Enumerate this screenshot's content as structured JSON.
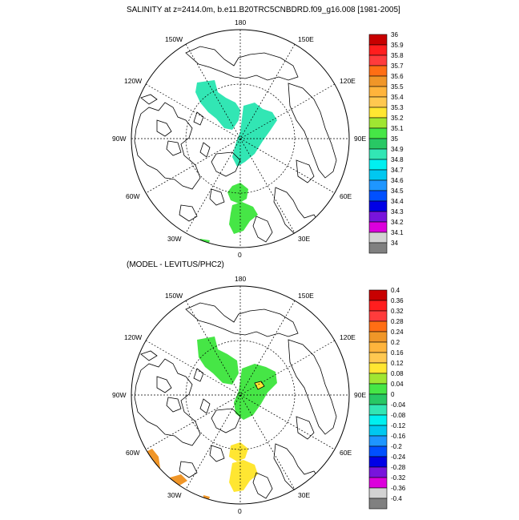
{
  "panel1": {
    "title": "SALINITY at z=2414.0m, b.e11.B20TRC5CNBDRD.f09_g16.008 [1981-2005]",
    "lon_labels": {
      "top": "180",
      "bottom": "0",
      "left": "90W",
      "right": "90E",
      "ul1": "150W",
      "ul2": "120W",
      "ur1": "150E",
      "ur2": "120E",
      "ll1": "60W",
      "ll2": "30W",
      "lr1": "60E",
      "lr2": "30E"
    },
    "colorbar": {
      "labels": [
        "36",
        "35.9",
        "35.8",
        "35.7",
        "35.6",
        "35.5",
        "35.4",
        "35.3",
        "35.2",
        "35.1",
        "35",
        "34.9",
        "34.8",
        "34.7",
        "34.6",
        "34.5",
        "34.4",
        "34.3",
        "34.2",
        "34.1",
        "34"
      ],
      "colors": [
        "#c80000",
        "#ff1e1e",
        "#ff3c3c",
        "#ff6e14",
        "#f09628",
        "#ffb43c",
        "#ffc850",
        "#ffe632",
        "#a0e632",
        "#46e646",
        "#28c864",
        "#32e6b4",
        "#00f0f0",
        "#00c8f0",
        "#1e96ff",
        "#0050ff",
        "#0000e6",
        "#7814dc",
        "#dc00dc",
        "#d2d2d2",
        "#808080"
      ]
    },
    "regions": [
      {
        "name": "region-siberian-side",
        "color": "#32e6b4"
      },
      {
        "name": "region-central-arctic",
        "color": "#32e6b4"
      },
      {
        "name": "region-fram-strait",
        "color": "#46e646"
      },
      {
        "name": "region-nordic-seas",
        "color": "#46e646"
      },
      {
        "name": "region-labrador-edge",
        "color": "#46e646"
      },
      {
        "name": "region-north-atlantic",
        "color": "#46e646"
      }
    ]
  },
  "panel2": {
    "title": "(MODEL - LEVITUS/PHC2)",
    "lon_labels": {
      "top": "180",
      "bottom": "0",
      "left": "90W",
      "right": "90E",
      "ul1": "150W",
      "ul2": "120W",
      "ur1": "150E",
      "ur2": "120E",
      "ll1": "60W",
      "ll2": "30W",
      "lr1": "60E",
      "lr2": "30E"
    },
    "colorbar": {
      "labels": [
        "0.4",
        "0.36",
        "0.32",
        "0.28",
        "0.24",
        "0.2",
        "0.16",
        "0.12",
        "0.08",
        "0.04",
        "0",
        "-0.04",
        "-0.08",
        "-0.12",
        "-0.16",
        "-0.2",
        "-0.24",
        "-0.28",
        "-0.32",
        "-0.36",
        "-0.4"
      ],
      "colors": [
        "#c80000",
        "#ff1e1e",
        "#ff3c3c",
        "#ff6e14",
        "#f09628",
        "#ffb43c",
        "#ffc850",
        "#ffe632",
        "#a0e632",
        "#46e646",
        "#28c864",
        "#32e6b4",
        "#00f0f0",
        "#00c8f0",
        "#1e96ff",
        "#0050ff",
        "#0000e6",
        "#7814dc",
        "#dc00dc",
        "#d2d2d2",
        "#808080"
      ]
    },
    "regions": [
      {
        "name": "region-siberian-side",
        "color": "#46e646"
      },
      {
        "name": "region-central-arctic",
        "color": "#46e646"
      },
      {
        "name": "region-yellow-spot",
        "color": "#ffe632"
      },
      {
        "name": "region-fram-strait",
        "color": "#ffe632"
      },
      {
        "name": "region-nordic-seas",
        "color": "#ffe632"
      },
      {
        "name": "region-labrador-edge",
        "color": "#f09628"
      },
      {
        "name": "region-north-atlantic",
        "color": "#f09628"
      }
    ]
  }
}
